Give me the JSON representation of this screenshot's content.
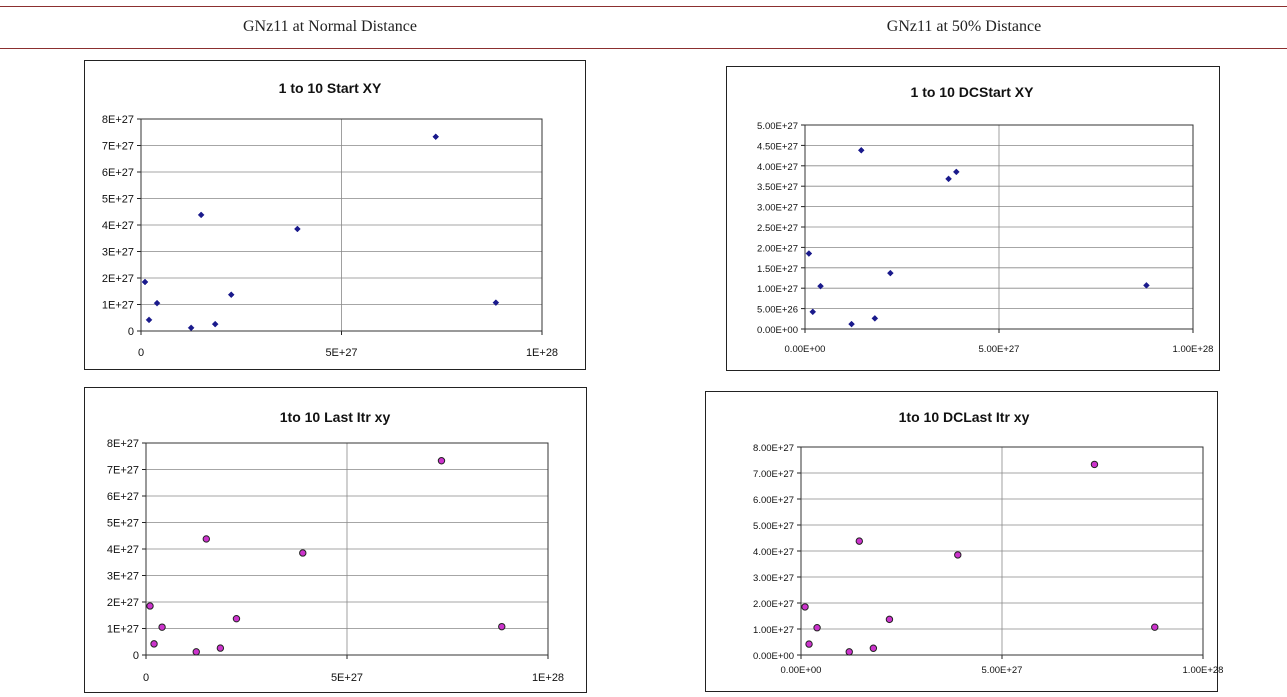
{
  "table": {
    "headers": [
      "GNz11 at Normal Distance",
      "GNz11 at 50% Distance"
    ]
  },
  "colors": {
    "rule": "#8b2f2f",
    "start_marker": "#1a1a8c",
    "last_marker_fill": "#cc33cc",
    "grid": "#888888"
  },
  "chart_data": [
    {
      "type": "scatter",
      "title": "1 to 10 Start XY",
      "marker": "diamond",
      "color": "#1a1a8c",
      "xlim": [
        0,
        1e+28
      ],
      "ylim": [
        0,
        8e+27
      ],
      "xticks": [
        0,
        5e+27,
        1e+28
      ],
      "xtick_labels": [
        "0",
        "5E+27",
        "1E+28"
      ],
      "yticks": [
        0,
        1e+27,
        2e+27,
        3e+27,
        4e+27,
        5e+27,
        6e+27,
        7e+27,
        8e+27
      ],
      "ytick_labels": [
        "0",
        "1E+27",
        "2E+27",
        "3E+27",
        "4E+27",
        "5E+27",
        "6E+27",
        "7E+27",
        "8E+27"
      ],
      "grid": "major gridlines",
      "points": [
        {
          "x": 1e+26,
          "y": 1.85e+27
        },
        {
          "x": 2e+26,
          "y": 4.2e+26
        },
        {
          "x": 4e+26,
          "y": 1.05e+27
        },
        {
          "x": 1.25e+27,
          "y": 1.2e+26
        },
        {
          "x": 1.5e+27,
          "y": 4.38e+27
        },
        {
          "x": 1.85e+27,
          "y": 2.6e+26
        },
        {
          "x": 2.25e+27,
          "y": 1.37e+27
        },
        {
          "x": 3.9e+27,
          "y": 3.85e+27
        },
        {
          "x": 7.35e+27,
          "y": 7.33e+27
        },
        {
          "x": 8.85e+27,
          "y": 1.07e+27
        }
      ]
    },
    {
      "type": "scatter",
      "title": "1 to 10 DCStart XY",
      "marker": "diamond",
      "color": "#1a1a8c",
      "xlim": [
        0,
        1e+28
      ],
      "ylim": [
        0,
        5e+27
      ],
      "xticks": [
        0,
        5e+27,
        1e+28
      ],
      "xtick_labels": [
        "0.00E+00",
        "5.00E+27",
        "1.00E+28"
      ],
      "yticks": [
        0,
        5e+26,
        1e+27,
        1.5e+27,
        2e+27,
        2.5e+27,
        3e+27,
        3.5e+27,
        4e+27,
        4.5e+27,
        5e+27
      ],
      "ytick_labels": [
        "0.00E+00",
        "5.00E+26",
        "1.00E+27",
        "1.50E+27",
        "2.00E+27",
        "2.50E+27",
        "3.00E+27",
        "3.50E+27",
        "4.00E+27",
        "4.50E+27",
        "5.00E+27"
      ],
      "grid": "major gridlines",
      "points": [
        {
          "x": 1e+26,
          "y": 1.85e+27
        },
        {
          "x": 2e+26,
          "y": 4.2e+26
        },
        {
          "x": 4e+26,
          "y": 1.05e+27
        },
        {
          "x": 1.2e+27,
          "y": 1.2e+26
        },
        {
          "x": 1.45e+27,
          "y": 4.38e+27
        },
        {
          "x": 1.8e+27,
          "y": 2.6e+26
        },
        {
          "x": 2.2e+27,
          "y": 1.37e+27
        },
        {
          "x": 3.7e+27,
          "y": 3.68e+27
        },
        {
          "x": 3.9e+27,
          "y": 3.85e+27
        },
        {
          "x": 8.8e+27,
          "y": 1.07e+27
        }
      ]
    },
    {
      "type": "scatter",
      "title": "1to 10 Last Itr xy",
      "marker": "circle",
      "color": "#cc33cc",
      "xlim": [
        0,
        1e+28
      ],
      "ylim": [
        0,
        8e+27
      ],
      "xticks": [
        0,
        5e+27,
        1e+28
      ],
      "xtick_labels": [
        "0",
        "5E+27",
        "1E+28"
      ],
      "yticks": [
        0,
        1e+27,
        2e+27,
        3e+27,
        4e+27,
        5e+27,
        6e+27,
        7e+27,
        8e+27
      ],
      "ytick_labels": [
        "0",
        "1E+27",
        "2E+27",
        "3E+27",
        "4E+27",
        "5E+27",
        "6E+27",
        "7E+27",
        "8E+27"
      ],
      "grid": "major gridlines",
      "points": [
        {
          "x": 1e+26,
          "y": 1.85e+27
        },
        {
          "x": 2e+26,
          "y": 4.2e+26
        },
        {
          "x": 4e+26,
          "y": 1.05e+27
        },
        {
          "x": 1.25e+27,
          "y": 1.2e+26
        },
        {
          "x": 1.5e+27,
          "y": 4.38e+27
        },
        {
          "x": 1.85e+27,
          "y": 2.6e+26
        },
        {
          "x": 2.25e+27,
          "y": 1.37e+27
        },
        {
          "x": 3.9e+27,
          "y": 3.85e+27
        },
        {
          "x": 7.35e+27,
          "y": 7.33e+27
        },
        {
          "x": 8.85e+27,
          "y": 1.07e+27
        }
      ]
    },
    {
      "type": "scatter",
      "title": "1to 10 DCLast Itr xy",
      "marker": "circle",
      "color": "#cc33cc",
      "xlim": [
        0,
        1e+28
      ],
      "ylim": [
        0,
        8e+27
      ],
      "xticks": [
        0,
        5e+27,
        1e+28
      ],
      "xtick_labels": [
        "0.00E+00",
        "5.00E+27",
        "1.00E+28"
      ],
      "yticks": [
        0,
        1e+27,
        2e+27,
        3e+27,
        4e+27,
        5e+27,
        6e+27,
        7e+27,
        8e+27
      ],
      "ytick_labels": [
        "0.00E+00",
        "1.00E+27",
        "2.00E+27",
        "3.00E+27",
        "4.00E+27",
        "5.00E+27",
        "6.00E+27",
        "7.00E+27",
        "8.00E+27"
      ],
      "grid": "major gridlines",
      "points": [
        {
          "x": 1e+26,
          "y": 1.85e+27
        },
        {
          "x": 2e+26,
          "y": 4.2e+26
        },
        {
          "x": 4e+26,
          "y": 1.05e+27
        },
        {
          "x": 1.2e+27,
          "y": 1.2e+26
        },
        {
          "x": 1.45e+27,
          "y": 4.38e+27
        },
        {
          "x": 1.8e+27,
          "y": 2.6e+26
        },
        {
          "x": 2.2e+27,
          "y": 1.37e+27
        },
        {
          "x": 3.9e+27,
          "y": 3.85e+27
        },
        {
          "x": 7.3e+27,
          "y": 7.33e+27
        },
        {
          "x": 8.8e+27,
          "y": 1.07e+27
        }
      ]
    }
  ]
}
